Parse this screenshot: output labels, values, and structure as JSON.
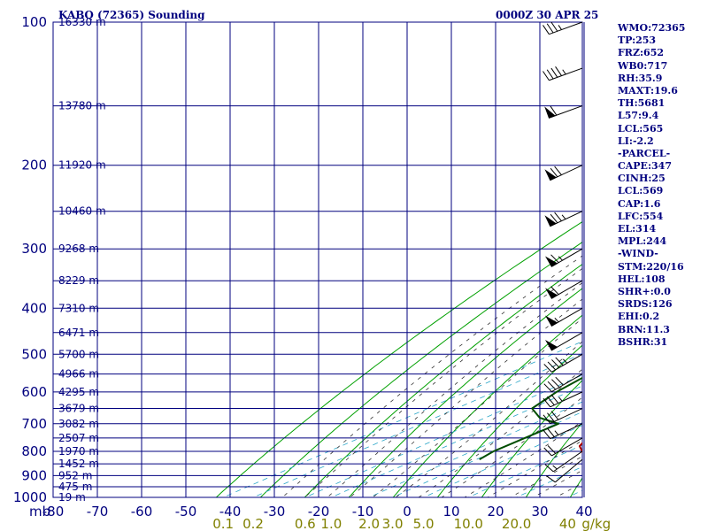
{
  "header": {
    "station": "KABQ (72365) Sounding",
    "time": "0000Z 30 APR 25"
  },
  "indices": [
    "WMO:72365",
    "TP:253",
    "FRZ:652",
    "WB0:717",
    "RH:35.9",
    "MAXT:19.6",
    "TH:5681",
    "L57:9.4",
    "LCL:565",
    "LI:-2.2",
    "-PARCEL-",
    "CAPE:347",
    "CINH:25",
    "LCL:569",
    "CAP:1.6",
    "LFC:554",
    "EL:314",
    "MPL:244",
    "-WIND-",
    "STM:220/16",
    "HEL:108",
    "SHR+:0.0",
    "SRDS:126",
    "EHI:0.2",
    "BRN:11.3",
    "BSHR:31"
  ],
  "axes": {
    "pressure_label_unit": "mb",
    "pressure_ticks": [
      "100",
      "200",
      "300",
      "400",
      "500",
      "600",
      "700",
      "800",
      "900",
      "1000"
    ],
    "temperature_ticks": [
      "-80",
      "-70",
      "-60",
      "-50",
      "-40",
      "-30",
      "-20",
      "-10",
      "0",
      "10",
      "20",
      "30",
      "40"
    ],
    "mixing_ratio_ticks": [
      "0.1",
      "0.2",
      "0.6",
      "1.0",
      "2.0",
      "3.0",
      "5.0",
      "10.0",
      "20.0",
      "40"
    ],
    "mixing_ratio_unit": "g/kg"
  },
  "colors": {
    "grid": "#00007f",
    "dry_adiabat": "#00a000",
    "moist_adiabat": "#333333",
    "mixing_ratio": "#2aa6c8",
    "temperature": "#b00000",
    "dewpoint": "#004d00",
    "parcel": "#0000b0",
    "wind_barb": "#000000",
    "text": "#00007f",
    "mixing_label": "#808000"
  },
  "chart_data": {
    "type": "line",
    "chart_kind": "skew-T log-P sounding",
    "x_unit": "C",
    "y_unit": "mb",
    "y_scale": "log",
    "ylim": [
      1000,
      100
    ],
    "xlim_at_bottom": [
      -80,
      40
    ],
    "heights": [
      {
        "p": 100,
        "label": "16330 m"
      },
      {
        "p": 150,
        "label": "13780 m"
      },
      {
        "p": 200,
        "label": "11920 m"
      },
      {
        "p": 250,
        "label": "10460 m"
      },
      {
        "p": 300,
        "label": "9268 m"
      },
      {
        "p": 350,
        "label": "8229 m"
      },
      {
        "p": 400,
        "label": "7310 m"
      },
      {
        "p": 450,
        "label": "6471 m"
      },
      {
        "p": 500,
        "label": "5700 m"
      },
      {
        "p": 550,
        "label": "4966 m"
      },
      {
        "p": 600,
        "label": "4295 m"
      },
      {
        "p": 650,
        "label": "3679 m"
      },
      {
        "p": 700,
        "label": "3082 m"
      },
      {
        "p": 750,
        "label": "2507 m"
      },
      {
        "p": 800,
        "label": "1970 m"
      },
      {
        "p": 850,
        "label": "1452 m"
      },
      {
        "p": 900,
        "label": "952 m"
      },
      {
        "p": 950,
        "label": "475 m"
      },
      {
        "p": 1000,
        "label": "19 m"
      }
    ],
    "series": [
      {
        "key": "temperature",
        "points": [
          [
            832,
            19.6
          ],
          [
            820,
            17
          ],
          [
            780,
            10
          ],
          [
            700,
            2
          ],
          [
            650,
            -3
          ],
          [
            600,
            -7.4
          ],
          [
            580,
            -9.2
          ],
          [
            560,
            -11.6
          ],
          [
            550,
            -12.7
          ],
          [
            520,
            -15.8
          ],
          [
            500,
            -18.2
          ],
          [
            460,
            -22.5
          ],
          [
            420,
            -26.5
          ],
          [
            390,
            -30.5
          ],
          [
            350,
            -37.2
          ],
          [
            330,
            -40.5
          ],
          [
            300,
            -44.7
          ],
          [
            280,
            -47
          ],
          [
            260,
            -49.6
          ],
          [
            250,
            -51.2
          ],
          [
            230,
            -52.9
          ],
          [
            200,
            -57.1
          ],
          [
            180,
            -59.5
          ],
          [
            170,
            -59.8
          ],
          [
            160,
            -61
          ],
          [
            150,
            -63.5
          ],
          [
            130,
            -65
          ],
          [
            115,
            -66.8
          ],
          [
            110,
            -67.5
          ],
          [
            100,
            -59
          ]
        ]
      },
      {
        "key": "dewpoint",
        "points": [
          [
            832,
            -5.1
          ],
          [
            800,
            -6.5
          ],
          [
            700,
            -7.4
          ],
          [
            680,
            -15
          ],
          [
            650,
            -22
          ],
          [
            600,
            -25.8
          ],
          [
            550,
            -28.5
          ],
          [
            500,
            -32
          ],
          [
            470,
            -35.4
          ],
          [
            440,
            -39.6
          ],
          [
            400,
            -43
          ],
          [
            380,
            -45.1
          ],
          [
            350,
            -49
          ],
          [
            320,
            -53
          ],
          [
            300,
            -55.2
          ],
          [
            280,
            -57
          ],
          [
            260,
            -61
          ],
          [
            240,
            -64.4
          ],
          [
            220,
            -67.5
          ],
          [
            200,
            -70.6
          ],
          [
            180,
            -73.5
          ],
          [
            170,
            -75.5
          ],
          [
            160,
            -78
          ],
          [
            145,
            -80.5
          ],
          [
            130,
            -83
          ]
        ]
      },
      {
        "key": "parcel",
        "points": [
          [
            832,
            19.6
          ],
          [
            800,
            16
          ],
          [
            750,
            11
          ],
          [
            700,
            5.5
          ],
          [
            650,
            -0.5
          ],
          [
            600,
            -6.7
          ],
          [
            569,
            -10.4
          ],
          [
            500,
            -16.2
          ],
          [
            450,
            -21.7
          ],
          [
            400,
            -27.7
          ],
          [
            350,
            -34.8
          ],
          [
            314,
            -40
          ],
          [
            300,
            -43
          ],
          [
            250,
            -54
          ],
          [
            200,
            -67
          ],
          [
            170,
            -76
          ]
        ]
      }
    ],
    "winds": [
      {
        "p": 832,
        "dir": 230,
        "spd": 10
      },
      {
        "p": 800,
        "dir": 235,
        "spd": 15
      },
      {
        "p": 750,
        "dir": 240,
        "spd": 20
      },
      {
        "p": 700,
        "dir": 245,
        "spd": 25
      },
      {
        "p": 650,
        "dir": 245,
        "spd": 30
      },
      {
        "p": 600,
        "dir": 245,
        "spd": 35
      },
      {
        "p": 550,
        "dir": 240,
        "spd": 40
      },
      {
        "p": 500,
        "dir": 240,
        "spd": 45
      },
      {
        "p": 450,
        "dir": 240,
        "spd": 50
      },
      {
        "p": 400,
        "dir": 240,
        "spd": 55
      },
      {
        "p": 350,
        "dir": 240,
        "spd": 60
      },
      {
        "p": 300,
        "dir": 240,
        "spd": 65
      },
      {
        "p": 250,
        "dir": 245,
        "spd": 75
      },
      {
        "p": 200,
        "dir": 245,
        "spd": 70
      },
      {
        "p": 150,
        "dir": 250,
        "spd": 60
      },
      {
        "p": 125,
        "dir": 250,
        "spd": 45
      },
      {
        "p": 100,
        "dir": 250,
        "spd": 35
      }
    ]
  }
}
